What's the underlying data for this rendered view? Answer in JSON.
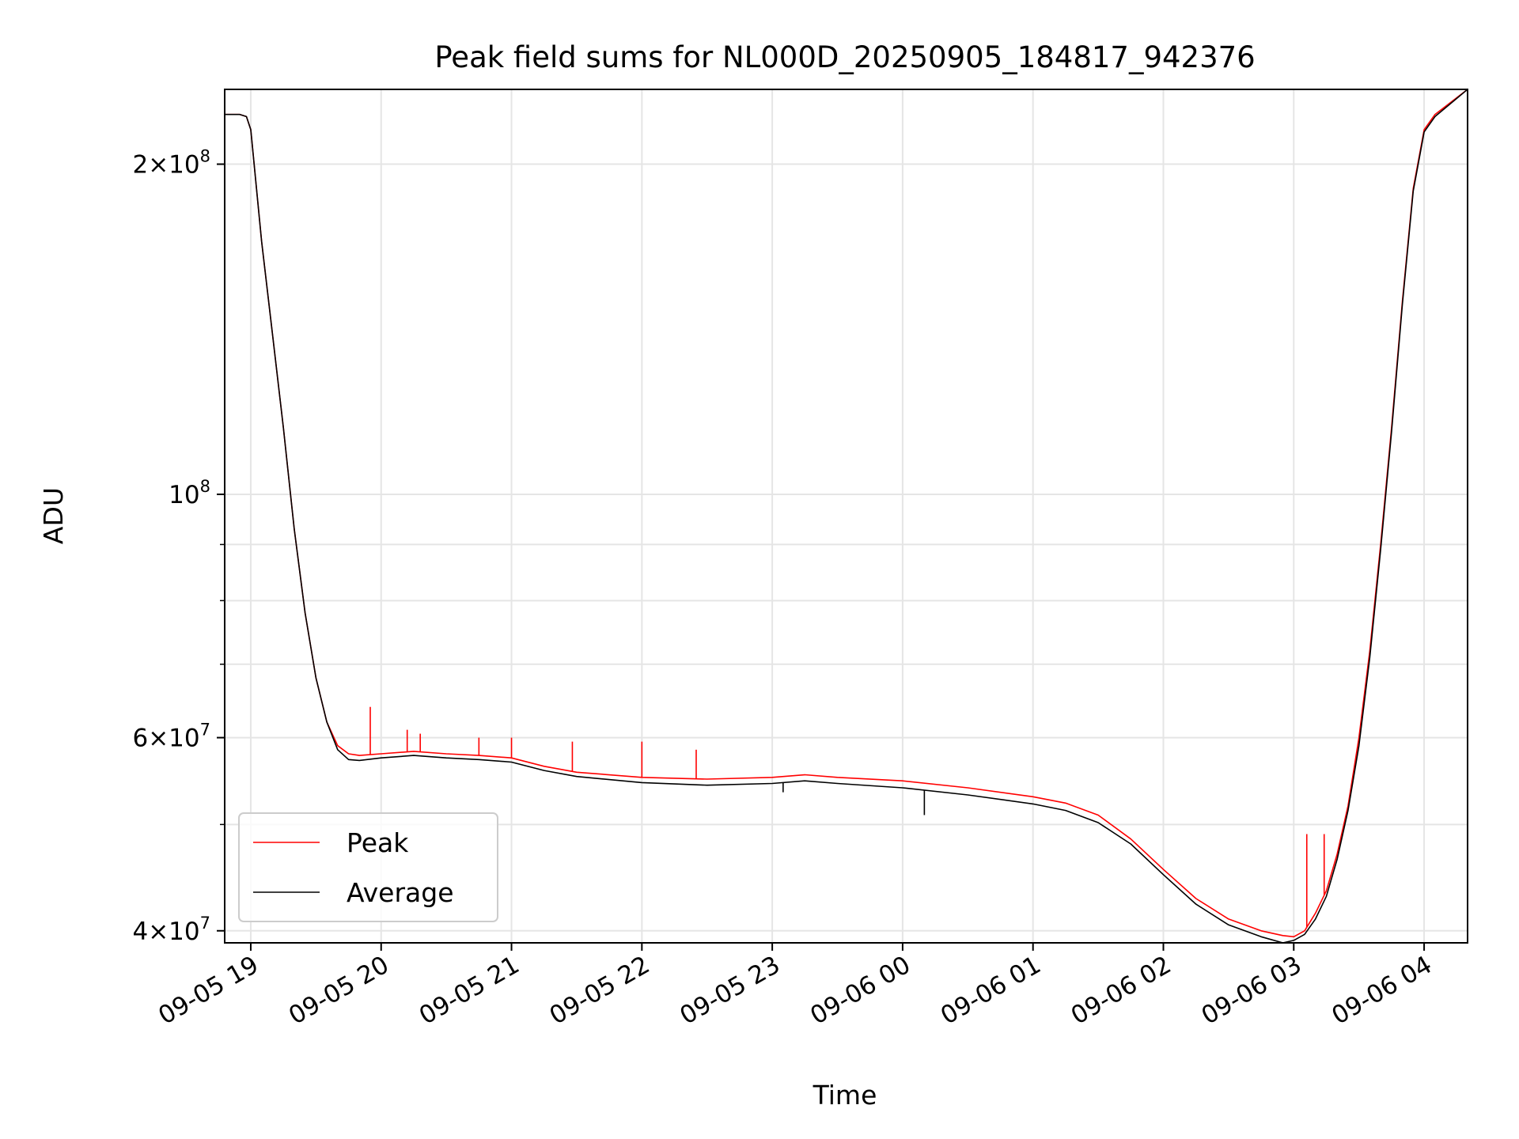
{
  "chart_data": {
    "type": "line",
    "title": "Peak field sums for NL000D_20250905_184817_942376",
    "xlabel": "Time",
    "ylabel": "ADU",
    "yscale": "log",
    "ylim": [
      39000000,
      234000000
    ],
    "xlim": [
      "2025-09-05 18:48",
      "2025-09-06 04:20"
    ],
    "grid": true,
    "legend_position": "lower-left",
    "x_ticks": [
      "09-05 19",
      "09-05 20",
      "09-05 21",
      "09-05 22",
      "09-05 23",
      "09-06 00",
      "09-06 01",
      "09-06 02",
      "09-06 03",
      "09-06 04"
    ],
    "x_tick_values": [
      "2025-09-05 19:00",
      "2025-09-05 20:00",
      "2025-09-05 21:00",
      "2025-09-05 22:00",
      "2025-09-05 23:00",
      "2025-09-06 00:00",
      "2025-09-06 01:00",
      "2025-09-06 02:00",
      "2025-09-06 03:00",
      "2025-09-06 04:00"
    ],
    "y_ticks": [
      {
        "value": 200000000,
        "mantissa": "2",
        "times": "×",
        "base": "10",
        "exp": "8"
      },
      {
        "value": 100000000,
        "mantissa": "",
        "times": "",
        "base": "10",
        "exp": "8"
      },
      {
        "value": 60000000,
        "mantissa": "6",
        "times": "×",
        "base": "10",
        "exp": "7"
      },
      {
        "value": 40000000,
        "mantissa": "4",
        "times": "×",
        "base": "10",
        "exp": "7"
      }
    ],
    "series": [
      {
        "name": "Peak",
        "color": "#ff0000",
        "x": [
          "2025-09-05 18:48",
          "2025-09-05 18:55",
          "2025-09-05 18:58",
          "2025-09-05 19:00",
          "2025-09-05 19:05",
          "2025-09-05 19:10",
          "2025-09-05 19:15",
          "2025-09-05 19:20",
          "2025-09-05 19:25",
          "2025-09-05 19:30",
          "2025-09-05 19:35",
          "2025-09-05 19:40",
          "2025-09-05 19:45",
          "2025-09-05 19:50",
          "2025-09-05 20:00",
          "2025-09-05 20:15",
          "2025-09-05 20:30",
          "2025-09-05 20:45",
          "2025-09-05 21:00",
          "2025-09-05 21:15",
          "2025-09-05 21:30",
          "2025-09-05 22:00",
          "2025-09-05 22:30",
          "2025-09-05 23:00",
          "2025-09-05 23:15",
          "2025-09-05 23:30",
          "2025-09-06 00:00",
          "2025-09-06 00:30",
          "2025-09-06 01:00",
          "2025-09-06 01:15",
          "2025-09-06 01:30",
          "2025-09-06 01:45",
          "2025-09-06 02:00",
          "2025-09-06 02:15",
          "2025-09-06 02:30",
          "2025-09-06 02:45",
          "2025-09-06 02:55",
          "2025-09-06 03:00",
          "2025-09-06 03:05",
          "2025-09-06 03:10",
          "2025-09-06 03:15",
          "2025-09-06 03:20",
          "2025-09-06 03:25",
          "2025-09-06 03:30",
          "2025-09-06 03:35",
          "2025-09-06 03:40",
          "2025-09-06 03:45",
          "2025-09-06 03:50",
          "2025-09-06 03:55",
          "2025-09-06 04:00",
          "2025-09-06 04:05",
          "2025-09-06 04:20"
        ],
        "y": [
          222000000,
          222000000,
          221000000,
          215000000,
          170000000,
          140000000,
          115000000,
          93000000,
          78000000,
          68000000,
          62000000,
          59000000,
          58000000,
          57800000,
          58000000,
          58300000,
          58000000,
          57800000,
          57500000,
          56500000,
          55800000,
          55200000,
          55000000,
          55200000,
          55500000,
          55200000,
          54800000,
          54000000,
          53000000,
          52300000,
          51000000,
          48500000,
          45500000,
          42800000,
          41000000,
          40000000,
          39600000,
          39500000,
          40000000,
          41500000,
          43500000,
          47000000,
          52000000,
          60000000,
          72000000,
          90000000,
          115000000,
          150000000,
          190000000,
          215000000,
          222000000,
          234000000
        ],
        "spikes": [
          {
            "x": "2025-09-05 19:55",
            "y": 64000000
          },
          {
            "x": "2025-09-05 20:12",
            "y": 61000000
          },
          {
            "x": "2025-09-05 20:18",
            "y": 60500000
          },
          {
            "x": "2025-09-05 20:45",
            "y": 60000000
          },
          {
            "x": "2025-09-05 21:00",
            "y": 60000000
          },
          {
            "x": "2025-09-05 21:28",
            "y": 59500000
          },
          {
            "x": "2025-09-05 22:00",
            "y": 59500000
          },
          {
            "x": "2025-09-05 22:25",
            "y": 58500000
          },
          {
            "x": "2025-09-06 03:06",
            "y": 49000000
          },
          {
            "x": "2025-09-06 03:14",
            "y": 49000000
          }
        ]
      },
      {
        "name": "Average",
        "color": "#000000",
        "x": [
          "2025-09-05 18:48",
          "2025-09-05 18:55",
          "2025-09-05 18:58",
          "2025-09-05 19:00",
          "2025-09-05 19:05",
          "2025-09-05 19:10",
          "2025-09-05 19:15",
          "2025-09-05 19:20",
          "2025-09-05 19:25",
          "2025-09-05 19:30",
          "2025-09-05 19:35",
          "2025-09-05 19:40",
          "2025-09-05 19:45",
          "2025-09-05 19:50",
          "2025-09-05 20:00",
          "2025-09-05 20:15",
          "2025-09-05 20:30",
          "2025-09-05 20:45",
          "2025-09-05 21:00",
          "2025-09-05 21:15",
          "2025-09-05 21:30",
          "2025-09-05 22:00",
          "2025-09-05 22:30",
          "2025-09-05 23:00",
          "2025-09-05 23:15",
          "2025-09-05 23:30",
          "2025-09-06 00:00",
          "2025-09-06 00:30",
          "2025-09-06 01:00",
          "2025-09-06 01:15",
          "2025-09-06 01:30",
          "2025-09-06 01:45",
          "2025-09-06 02:00",
          "2025-09-06 02:15",
          "2025-09-06 02:30",
          "2025-09-06 02:45",
          "2025-09-06 02:55",
          "2025-09-06 03:00",
          "2025-09-06 03:05",
          "2025-09-06 03:10",
          "2025-09-06 03:15",
          "2025-09-06 03:20",
          "2025-09-06 03:25",
          "2025-09-06 03:30",
          "2025-09-06 03:35",
          "2025-09-06 03:40",
          "2025-09-06 03:45",
          "2025-09-06 03:50",
          "2025-09-06 03:55",
          "2025-09-06 04:00",
          "2025-09-06 04:05",
          "2025-09-06 04:20"
        ],
        "y": [
          222000000,
          222000000,
          221000000,
          215000000,
          170000000,
          140000000,
          115000000,
          93000000,
          78000000,
          68000000,
          62000000,
          58500000,
          57300000,
          57200000,
          57500000,
          57800000,
          57500000,
          57300000,
          57000000,
          56000000,
          55300000,
          54600000,
          54300000,
          54500000,
          54800000,
          54500000,
          54000000,
          53200000,
          52200000,
          51500000,
          50200000,
          48000000,
          45000000,
          42300000,
          40500000,
          39500000,
          39000000,
          39200000,
          39700000,
          41000000,
          43000000,
          46500000,
          51500000,
          59000000,
          71000000,
          89000000,
          114000000,
          149000000,
          189000000,
          214000000,
          221000000,
          234000000
        ],
        "dips": [
          {
            "x": "2025-09-05 23:05",
            "y": 53500000
          },
          {
            "x": "2025-09-06 00:10",
            "y": 51000000
          }
        ]
      }
    ]
  }
}
